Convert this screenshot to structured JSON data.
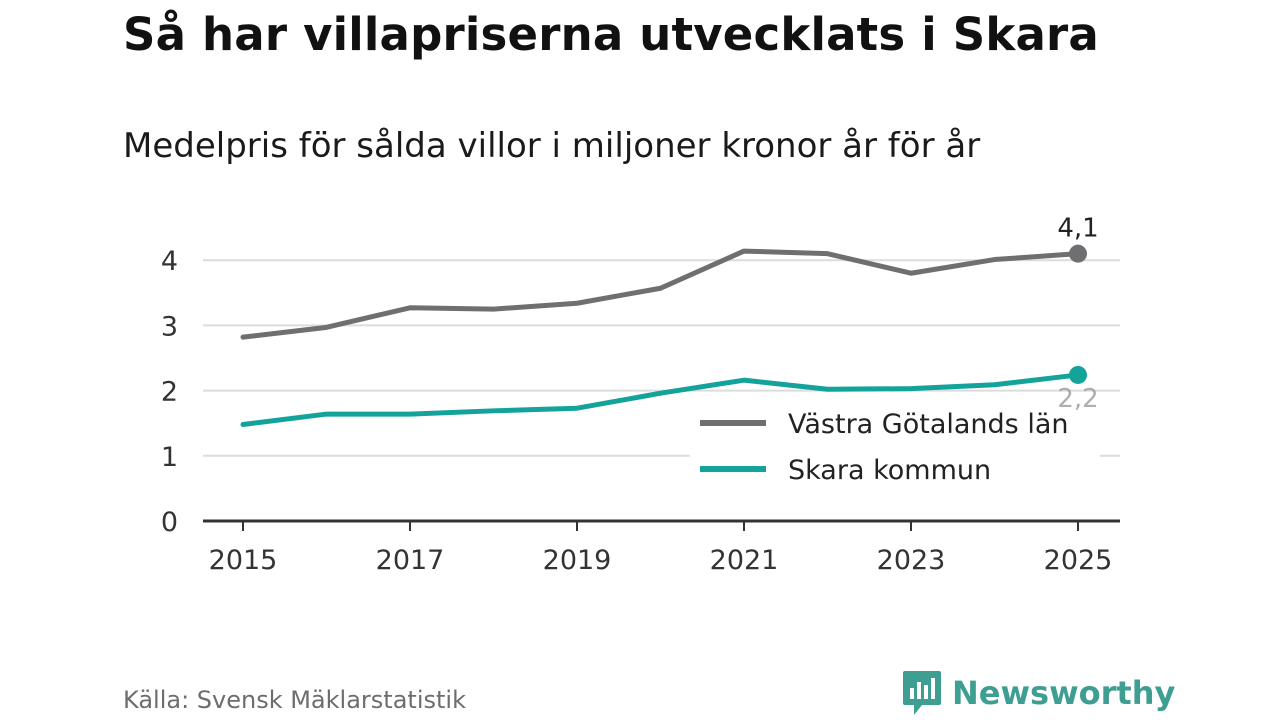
{
  "header": {
    "title": "Så har villapriserna utvecklats i Skara",
    "subtitle": "Medelpris för sålda villor i miljoner kronor år för år"
  },
  "footer": {
    "source": "Källa: Svensk Mäklarstatistik",
    "brand": "Newsworthy"
  },
  "colors": {
    "region": "#6f6f72",
    "municipality": "#14a39a",
    "grid": "#dcdcdc",
    "axis": "#333333"
  },
  "chart_data": {
    "type": "line",
    "title": "Så har villapriserna utvecklats i Skara",
    "subtitle": "Medelpris för sålda villor i miljoner kronor år för år",
    "xlabel": "",
    "ylabel": "",
    "x": [
      2015,
      2016,
      2017,
      2018,
      2019,
      2020,
      2021,
      2022,
      2023,
      2024,
      2025
    ],
    "xticks": [
      "2015",
      "2017",
      "2019",
      "2021",
      "2023",
      "2025"
    ],
    "yticks": [
      "0",
      "1",
      "2",
      "3",
      "4"
    ],
    "ylim": [
      0,
      4.3
    ],
    "grid": true,
    "legend_position": "bottom-right",
    "series": [
      {
        "name": "Västra Götalands län",
        "color": "#6f6f72",
        "values": [
          2.82,
          2.97,
          3.27,
          3.25,
          3.34,
          3.57,
          4.14,
          4.1,
          3.8,
          4.01,
          4.1
        ],
        "end_label": "4,1"
      },
      {
        "name": "Skara kommun",
        "color": "#14a39a",
        "values": [
          1.48,
          1.64,
          1.64,
          1.69,
          1.73,
          1.96,
          2.16,
          2.02,
          2.03,
          2.09,
          2.24
        ],
        "end_label": "2,2"
      }
    ]
  }
}
